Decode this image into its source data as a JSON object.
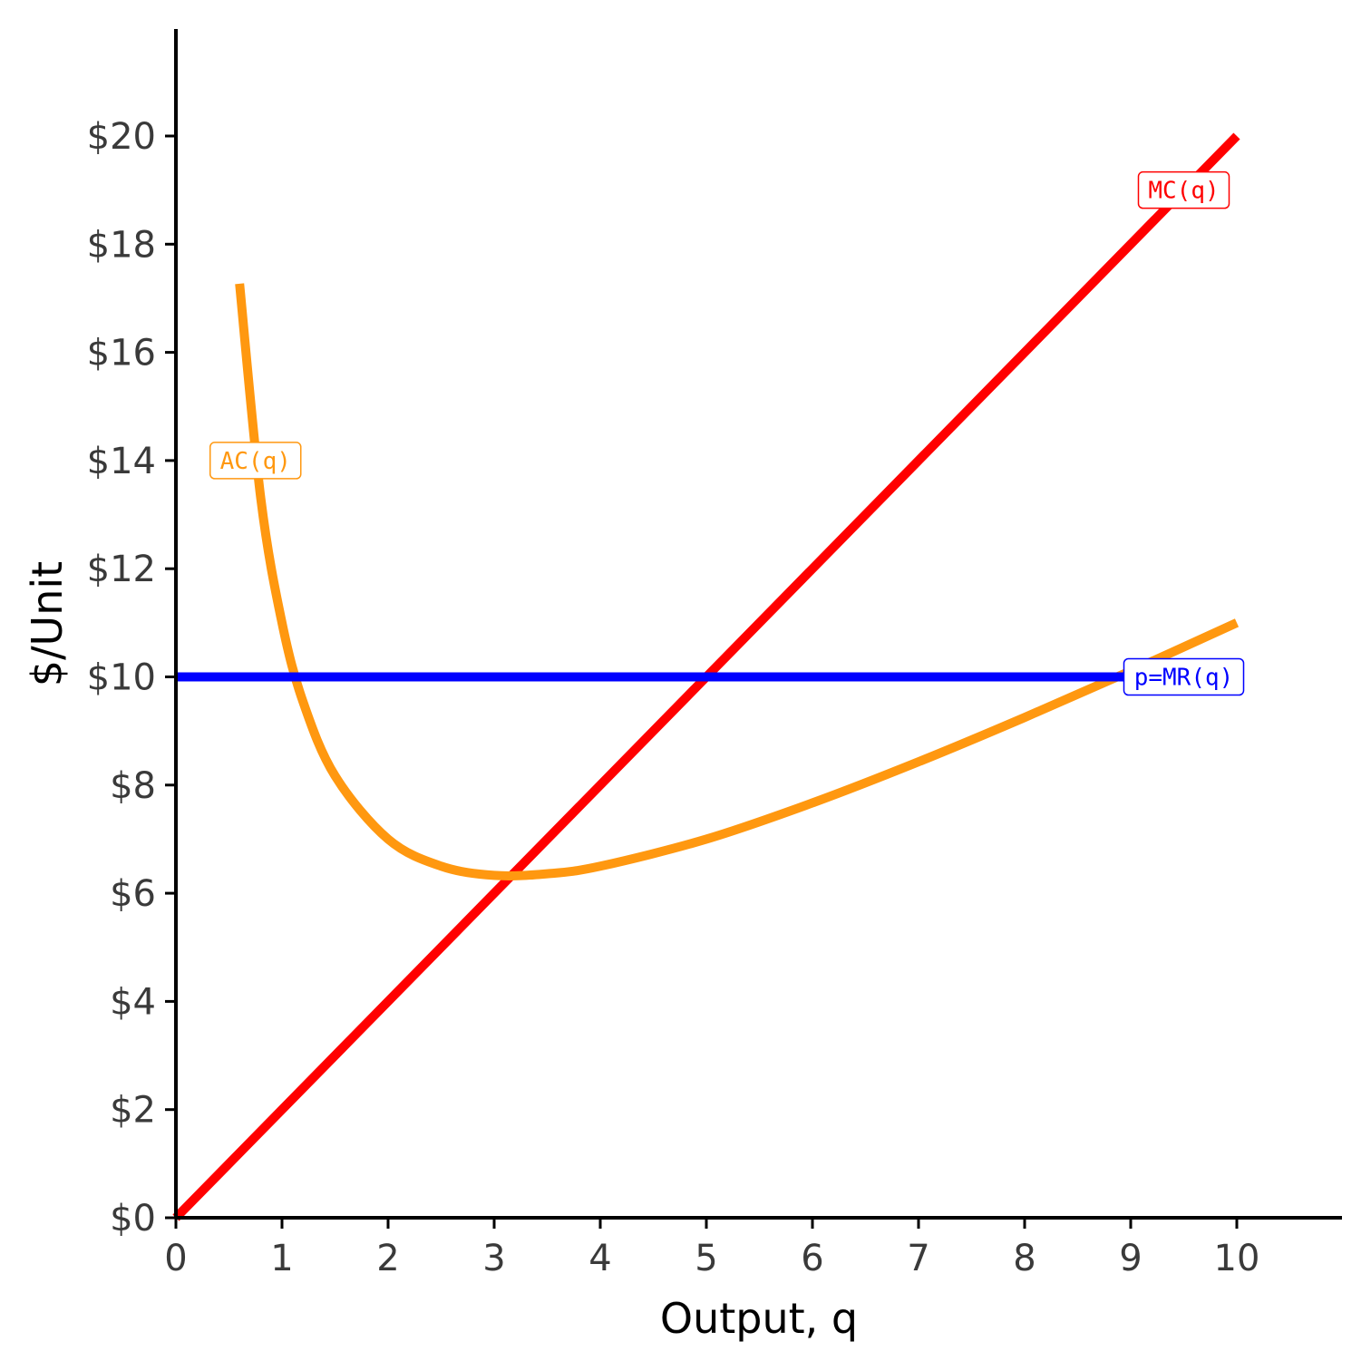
{
  "chart_data": {
    "type": "line",
    "xlabel": "Output, q",
    "ylabel": "$/Unit",
    "xlim": [
      0,
      11
    ],
    "ylim": [
      0,
      22
    ],
    "x_ticks": [
      "0",
      "1",
      "2",
      "3",
      "4",
      "5",
      "6",
      "7",
      "8",
      "9",
      "10"
    ],
    "y_ticks": [
      "$0",
      "$2",
      "$4",
      "$6",
      "$8",
      "$10",
      "$12",
      "$14",
      "$16",
      "$18",
      "$20"
    ],
    "grid": false,
    "series": [
      {
        "name": "MC(q)",
        "color": "#ff0000",
        "points": [
          [
            0,
            0
          ],
          [
            10,
            20
          ]
        ],
        "label_at": [
          9.5,
          19
        ]
      },
      {
        "name": "AC(q)",
        "color": "#ff9810",
        "points": [
          [
            0.6,
            17.27
          ],
          [
            0.8,
            13.3
          ],
          [
            1,
            11
          ],
          [
            1.2,
            9.53
          ],
          [
            1.5,
            8.17
          ],
          [
            2,
            7
          ],
          [
            2.5,
            6.5
          ],
          [
            3,
            6.33
          ],
          [
            3.5,
            6.36
          ],
          [
            4,
            6.5
          ],
          [
            5,
            7
          ],
          [
            6,
            7.67
          ],
          [
            7,
            8.43
          ],
          [
            8,
            9.25
          ],
          [
            9,
            10.11
          ],
          [
            10,
            11
          ]
        ],
        "label_at": [
          0.75,
          14
        ]
      },
      {
        "name": "p=MR(q)",
        "color": "#0000ff",
        "points": [
          [
            0,
            10
          ],
          [
            9,
            10
          ]
        ],
        "label_at": [
          9.5,
          10
        ]
      }
    ]
  }
}
